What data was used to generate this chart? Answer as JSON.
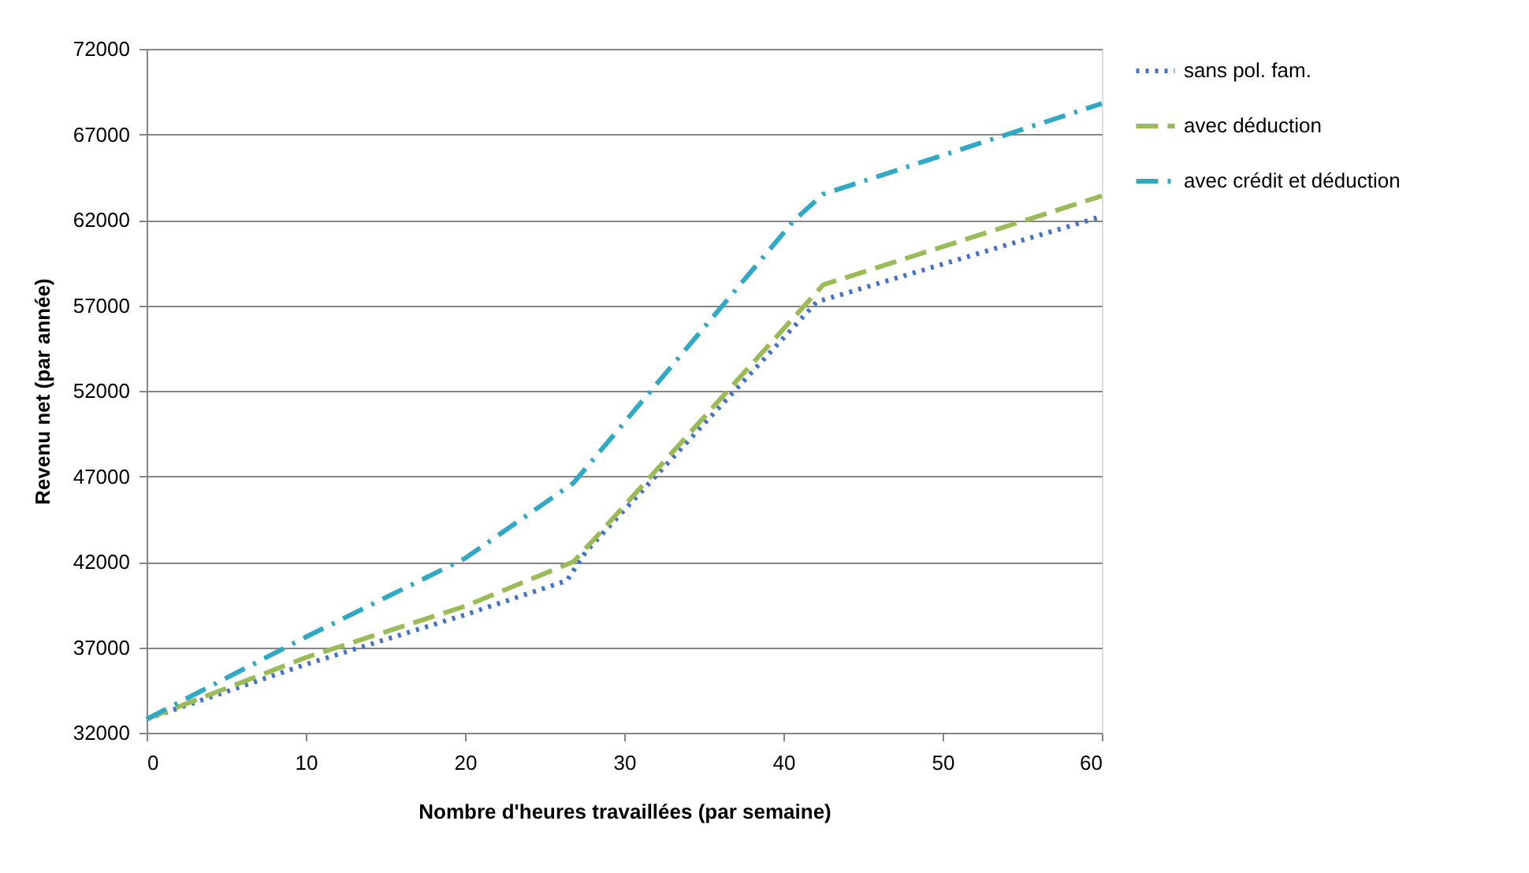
{
  "chart_data": {
    "type": "line",
    "xlabel": "Nombre d'heures travaillées (par semaine)",
    "ylabel": "Revenu net  (par année)",
    "xlim": [
      0,
      60
    ],
    "xticks": [
      0,
      10,
      20,
      30,
      40,
      50,
      60
    ],
    "ylim": [
      32000,
      72000
    ],
    "yticks": [
      32000,
      37000,
      42000,
      47000,
      52000,
      57000,
      62000,
      67000,
      72000
    ],
    "grid": "y",
    "legend": "right",
    "marker": "none",
    "series": [
      {
        "name": "sans pol. fam.",
        "color": "#4472c4",
        "line_style": "dotted",
        "x": [
          0,
          10,
          20,
          26.4,
          27.6,
          42.1,
          60
        ],
        "values": [
          32800,
          36000,
          38900,
          40900,
          42600,
          57200,
          62200
        ]
      },
      {
        "name": "avec déduction",
        "color": "#9bbb59",
        "line_style": "dashed",
        "x": [
          0,
          10,
          20,
          26.8,
          27.8,
          42.5,
          60
        ],
        "values": [
          32800,
          36400,
          39400,
          42000,
          43000,
          58200,
          63400
        ]
      },
      {
        "name": "avec crédit et déduction",
        "color": "#31a9c4",
        "line_style": "dashdot",
        "x": [
          0,
          10,
          20,
          26.8,
          40.7,
          42.5,
          60
        ],
        "values": [
          32800,
          37600,
          42200,
          46600,
          62000,
          63500,
          68800
        ]
      }
    ]
  }
}
